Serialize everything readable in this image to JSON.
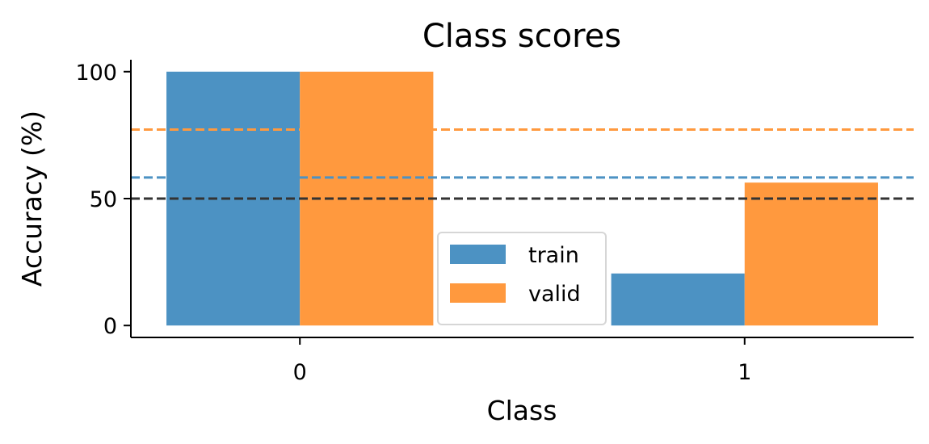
{
  "chart_data": {
    "type": "bar",
    "title": "Class scores",
    "xlabel": "Class",
    "ylabel": "Accuracy (%)",
    "categories": [
      "0",
      "1"
    ],
    "series": [
      {
        "name": "train",
        "values": [
          100,
          20.5
        ],
        "color": "#4c92c3"
      },
      {
        "name": "valid",
        "values": [
          100,
          56.3
        ],
        "color": "#ff993e"
      }
    ],
    "reference_lines": [
      {
        "value": 77.2,
        "color": "#ff993e",
        "style": "dashed"
      },
      {
        "value": 58.3,
        "color": "#4c92c3",
        "style": "dashed"
      },
      {
        "value": 50,
        "color": "#333333",
        "style": "dashed"
      }
    ],
    "yticks": [
      "0",
      "50",
      "100"
    ],
    "ytick_values": [
      0,
      50,
      100
    ],
    "ylim": [
      -4.7,
      104.7
    ],
    "grid": false,
    "legend_position": "lower-center"
  }
}
